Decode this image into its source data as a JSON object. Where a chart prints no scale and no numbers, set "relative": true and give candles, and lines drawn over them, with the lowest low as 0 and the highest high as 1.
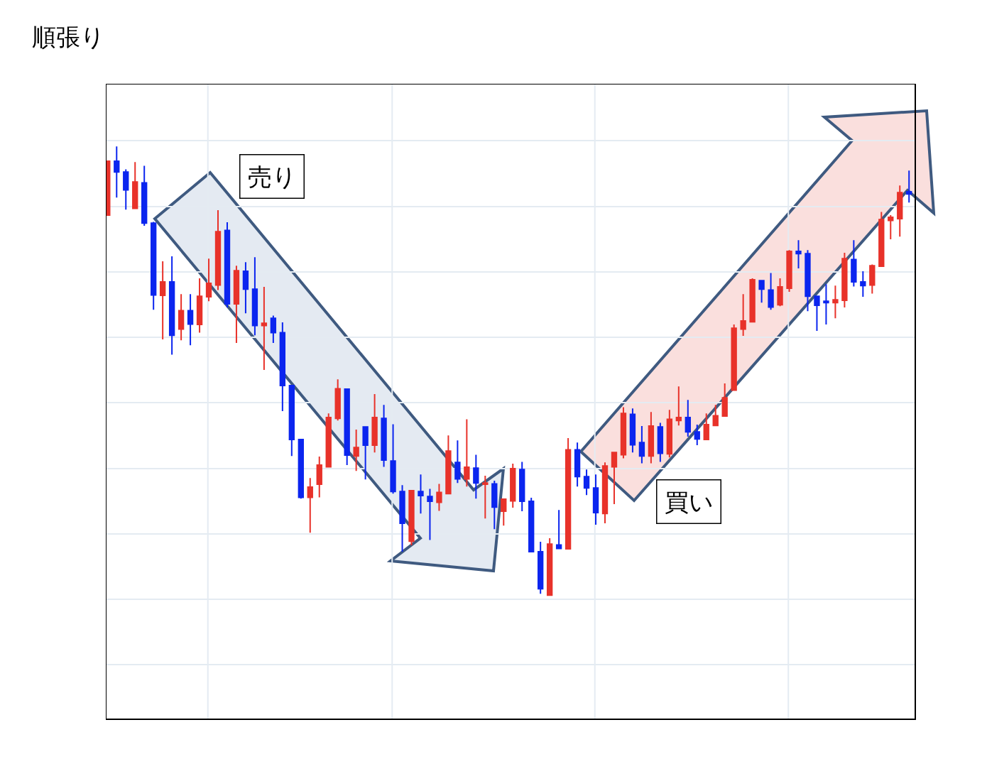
{
  "chart_data": {
    "type": "candlestick",
    "title": "順張り",
    "relative": true,
    "grid": true,
    "annotations": [
      "売り",
      "買い"
    ],
    "categories": [
      null,
      null,
      null,
      null,
      null,
      null,
      null,
      null,
      null,
      null,
      null,
      null,
      null,
      null,
      null,
      null,
      null,
      null,
      null,
      null,
      null,
      null,
      null,
      null,
      null,
      null,
      null,
      null,
      null,
      null,
      null,
      null,
      null,
      null,
      null,
      null,
      null,
      null,
      null,
      null,
      null,
      null,
      null,
      null,
      null,
      null,
      null,
      null,
      null,
      null,
      null,
      null,
      null,
      null,
      null,
      null,
      null,
      null,
      null,
      null,
      null,
      null,
      null,
      null,
      null,
      null,
      null,
      null,
      null,
      null,
      null,
      null,
      null,
      null,
      null,
      null,
      null,
      null,
      null,
      null,
      null,
      null,
      null,
      null,
      null,
      null,
      null,
      null
    ],
    "ohlc": [
      [
        0.847,
        0.968,
        0.847,
        0.967
      ],
      [
        0.967,
        1.0,
        0.886,
        0.943
      ],
      [
        0.943,
        0.949,
        0.859,
        0.903
      ],
      [
        0.862,
        0.965,
        0.862,
        0.921
      ],
      [
        0.919,
        0.957,
        0.823,
        0.829
      ],
      [
        0.829,
        0.832,
        0.636,
        0.669
      ],
      [
        0.668,
        0.744,
        0.57,
        0.698
      ],
      [
        0.698,
        0.755,
        0.536,
        0.579
      ],
      [
        0.593,
        0.671,
        0.568,
        0.634
      ],
      [
        0.634,
        0.671,
        0.557,
        0.604
      ],
      [
        0.603,
        0.706,
        0.585,
        0.666
      ],
      [
        0.665,
        0.75,
        0.655,
        0.695
      ],
      [
        0.691,
        0.858,
        0.68,
        0.81
      ],
      [
        0.813,
        0.831,
        0.641,
        0.649
      ],
      [
        0.649,
        0.734,
        0.562,
        0.723
      ],
      [
        0.722,
        0.742,
        0.628,
        0.682
      ],
      [
        0.682,
        0.753,
        0.579,
        0.601
      ],
      [
        0.601,
        0.687,
        0.502,
        0.606
      ],
      [
        0.617,
        0.623,
        0.562,
        0.585
      ],
      [
        0.585,
        0.608,
        0.41,
        0.467
      ],
      [
        0.467,
        0.467,
        0.31,
        0.347
      ],
      [
        0.347,
        0.347,
        0.215,
        0.218
      ],
      [
        0.218,
        0.261,
        0.139,
        0.241
      ],
      [
        0.247,
        0.309,
        0.218,
        0.29
      ],
      [
        0.286,
        0.405,
        0.286,
        0.396
      ],
      [
        0.394,
        0.481,
        0.389,
        0.46
      ],
      [
        0.459,
        0.459,
        0.29,
        0.312
      ],
      [
        0.31,
        0.369,
        0.277,
        0.329
      ],
      [
        0.375,
        0.375,
        0.258,
        0.334
      ],
      [
        0.334,
        0.448,
        0.318,
        0.396
      ],
      [
        0.394,
        0.424,
        0.286,
        0.301
      ],
      [
        0.299,
        0.381,
        0.226,
        0.231
      ],
      [
        0.231,
        0.245,
        0.097,
        0.16
      ],
      [
        0.12,
        0.233,
        0.111,
        0.233
      ],
      [
        0.231,
        0.269,
        0.182,
        0.222
      ],
      [
        0.22,
        0.237,
        0.123,
        0.209
      ],
      [
        0.207,
        0.248,
        0.188,
        0.229
      ],
      [
        0.226,
        0.356,
        0.226,
        0.321
      ],
      [
        0.296,
        0.345,
        0.25,
        0.259
      ],
      [
        0.259,
        0.392,
        0.242,
        0.285
      ],
      [
        0.283,
        0.313,
        0.215,
        0.25
      ],
      [
        0.247,
        0.266,
        0.171,
        0.25
      ],
      [
        0.248,
        0.255,
        0.147,
        0.196
      ],
      [
        0.187,
        0.214,
        0.155,
        0.214
      ],
      [
        0.21,
        0.293,
        0.195,
        0.282
      ],
      [
        0.28,
        0.297,
        0.187,
        0.209
      ],
      [
        0.209,
        0.217,
        0.097,
        0.097
      ],
      [
        0.097,
        0.119,
        0.003,
        0.014
      ],
      [
        0.0,
        0.127,
        0.0,
        0.114
      ],
      [
        0.112,
        0.19,
        0.104,
        0.104
      ],
      [
        0.103,
        0.35,
        0.103,
        0.324
      ],
      [
        0.324,
        0.34,
        0.242,
        0.264
      ],
      [
        0.264,
        0.28,
        0.223,
        0.239
      ],
      [
        0.239,
        0.269,
        0.157,
        0.184
      ],
      [
        0.182,
        0.296,
        0.16,
        0.288
      ],
      [
        0.286,
        0.318,
        0.203,
        0.318
      ],
      [
        0.313,
        0.419,
        0.305,
        0.405
      ],
      [
        0.403,
        0.416,
        0.318,
        0.335
      ],
      [
        0.34,
        0.377,
        0.294,
        0.31
      ],
      [
        0.31,
        0.408,
        0.294,
        0.377
      ],
      [
        0.375,
        0.384,
        0.297,
        0.316
      ],
      [
        0.315,
        0.413,
        0.307,
        0.392
      ],
      [
        0.389,
        0.465,
        0.378,
        0.396
      ],
      [
        0.396,
        0.435,
        0.353,
        0.364
      ],
      [
        0.364,
        0.38,
        0.334,
        0.348
      ],
      [
        0.347,
        0.405,
        0.347,
        0.38
      ],
      [
        0.378,
        0.424,
        0.378,
        0.4
      ],
      [
        0.399,
        0.472,
        0.399,
        0.44
      ],
      [
        0.457,
        0.603,
        0.457,
        0.595
      ],
      [
        0.593,
        0.671,
        0.578,
        0.611
      ],
      [
        0.609,
        0.706,
        0.609,
        0.703
      ],
      [
        0.701,
        0.701,
        0.652,
        0.682
      ],
      [
        0.68,
        0.718,
        0.636,
        0.642
      ],
      [
        0.647,
        0.706,
        0.644,
        0.687
      ],
      [
        0.684,
        0.769,
        0.676,
        0.766
      ],
      [
        0.766,
        0.791,
        0.728,
        0.761
      ],
      [
        0.761,
        0.769,
        0.633,
        0.666
      ],
      [
        0.666,
        0.666,
        0.589,
        0.646
      ],
      [
        0.655,
        0.693,
        0.603,
        0.652
      ],
      [
        0.652,
        0.69,
        0.617,
        0.658
      ],
      [
        0.657,
        0.763,
        0.641,
        0.75
      ],
      [
        0.748,
        0.791,
        0.688,
        0.698
      ],
      [
        0.698,
        0.722,
        0.665,
        0.69
      ],
      [
        0.691,
        0.737,
        0.672,
        0.734
      ],
      [
        0.733,
        0.854,
        0.733,
        0.837
      ],
      [
        0.835,
        0.847,
        0.793,
        0.842
      ],
      [
        0.839,
        0.913,
        0.799,
        0.897
      ],
      [
        0.899,
        0.946,
        0.875,
        0.894
      ]
    ],
    "colors": [
      "#e8322a",
      "#0b25ef",
      "#0b25ef",
      "#e8322a",
      "#0b25ef",
      "#0b25ef",
      "#e8322a",
      "#0b25ef",
      "#e8322a",
      "#0b25ef",
      "#e8322a",
      "#e8322a",
      "#e8322a",
      "#0b25ef",
      "#e8322a",
      "#0b25ef",
      "#0b25ef",
      "#e8322a",
      "#0b25ef",
      "#0b25ef",
      "#0b25ef",
      "#0b25ef",
      "#e8322a",
      "#e8322a",
      "#e8322a",
      "#e8322a",
      "#0b25ef",
      "#e8322a",
      "#0b25ef",
      "#e8322a",
      "#0b25ef",
      "#0b25ef",
      "#0b25ef",
      "#e8322a",
      "#0b25ef",
      "#0b25ef",
      "#e8322a",
      "#e8322a",
      "#0b25ef",
      "#e8322a",
      "#0b25ef",
      "#e8322a",
      "#0b25ef",
      "#e8322a",
      "#e8322a",
      "#0b25ef",
      "#0b25ef",
      "#0b25ef",
      "#e8322a",
      "#0b25ef",
      "#e8322a",
      "#0b25ef",
      "#0b25ef",
      "#0b25ef",
      "#e8322a",
      "#e8322a",
      "#e8322a",
      "#0b25ef",
      "#0b25ef",
      "#e8322a",
      "#0b25ef",
      "#e8322a",
      "#e8322a",
      "#0b25ef",
      "#0b25ef",
      "#e8322a",
      "#e8322a",
      "#e8322a",
      "#e8322a",
      "#e8322a",
      "#e8322a",
      "#0b25ef",
      "#0b25ef",
      "#e8322a",
      "#e8322a",
      "#0b25ef",
      "#0b25ef",
      "#0b25ef",
      "#0b25ef",
      "#e8322a",
      "#e8322a",
      "#0b25ef",
      "#0b25ef",
      "#e8322a",
      "#e8322a",
      "#e8322a",
      "#e8322a",
      "#0b25ef"
    ]
  }
}
